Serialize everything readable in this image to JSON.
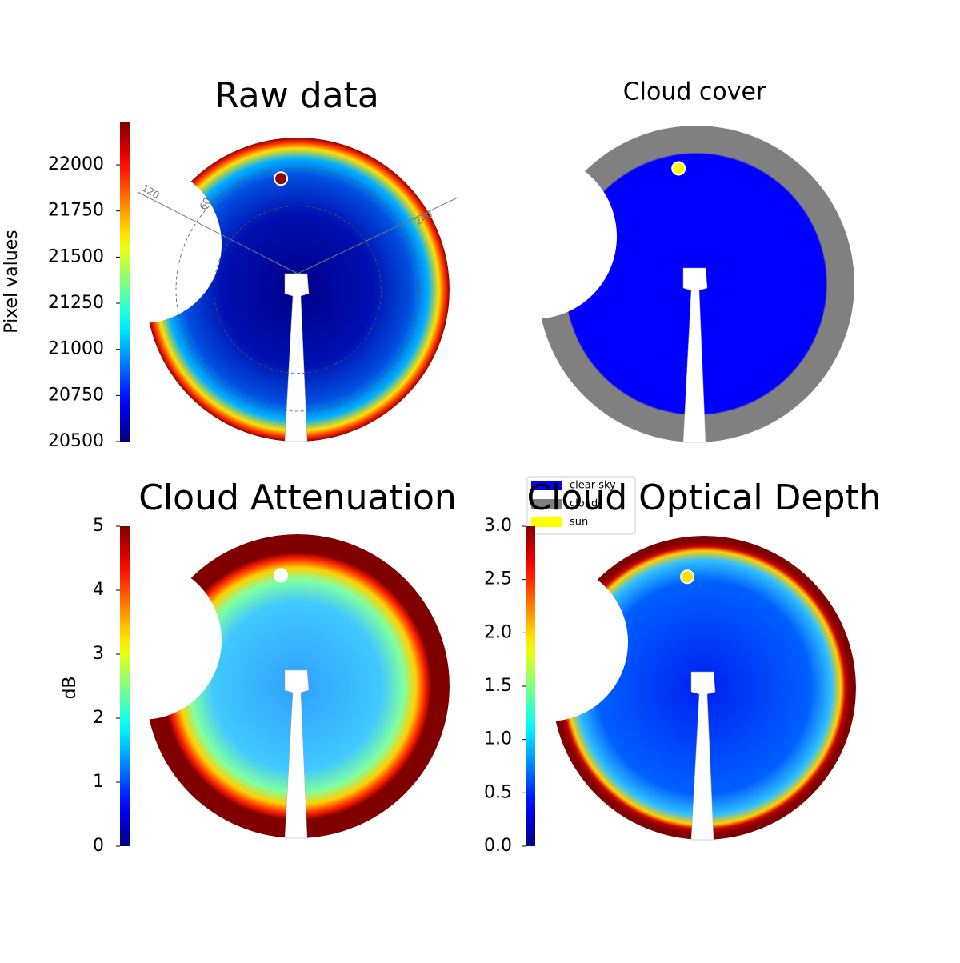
{
  "chart_data": [
    {
      "type": "image",
      "title": "Raw data",
      "colormap": "jet",
      "colorbar_label": "Pixel values",
      "clim": [
        20500,
        22230
      ],
      "cticks": [
        20500,
        20750,
        21000,
        21250,
        21500,
        21750,
        22000
      ],
      "polar_labels": [
        "120",
        "60",
        "240"
      ]
    },
    {
      "type": "image",
      "title": "Cloud cover",
      "series": [
        {
          "name": "clear sky",
          "color": "#0000ff"
        },
        {
          "name": "cloud",
          "color": "#808080"
        },
        {
          "name": "sun",
          "color": "#ffff00"
        }
      ]
    },
    {
      "type": "image",
      "title": "Cloud Attenuation",
      "colormap": "jet",
      "colorbar_label": "dB",
      "clim": [
        0,
        5
      ],
      "cticks": [
        0,
        1,
        2,
        3,
        4,
        5
      ]
    },
    {
      "type": "image",
      "title": "Cloud Optical Depth",
      "colormap": "jet",
      "clim": [
        0,
        3
      ],
      "cticks": [
        {
          "value": 0,
          "label": "0.0"
        },
        {
          "value": 0.5,
          "label": "0.5"
        },
        {
          "value": 1,
          "label": "1.0"
        },
        {
          "value": 1.5,
          "label": "1.5"
        },
        {
          "value": 2,
          "label": "2.0"
        },
        {
          "value": 2.5,
          "label": "2.5"
        },
        {
          "value": 3,
          "label": "3.0"
        }
      ]
    }
  ]
}
